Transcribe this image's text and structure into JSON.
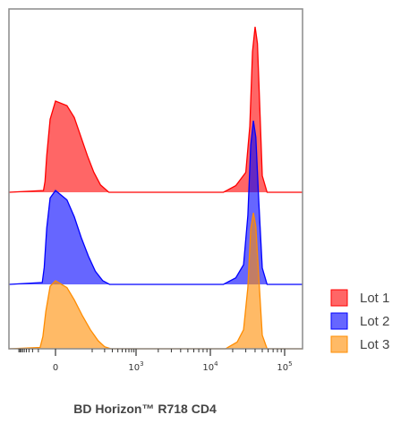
{
  "chart_data": {
    "type": "area",
    "title": "",
    "xlabel": "BD Horizon™ R718 CD4",
    "ylabel": "",
    "x_scale": "biexponential",
    "xlim": [
      -100,
      150000
    ],
    "grid": false,
    "legend_position": "right",
    "x_ticks": [
      {
        "value": 0,
        "base": "0",
        "exp": ""
      },
      {
        "value": 1000,
        "base": "10",
        "exp": "3"
      },
      {
        "value": 10000,
        "base": "10",
        "exp": "4"
      },
      {
        "value": 100000,
        "base": "10",
        "exp": "5"
      }
    ],
    "series": [
      {
        "name": "Lot 1",
        "color": "#ff0000",
        "negative_peak": {
          "x": [
            -50,
            -40,
            -30,
            -15,
            0,
            15,
            30,
            50,
            75,
            110,
            160,
            250
          ],
          "y": [
            0.02,
            0.12,
            0.4,
            0.8,
            1.0,
            0.95,
            0.82,
            0.6,
            0.4,
            0.22,
            0.08,
            0.0
          ]
        },
        "positive_peak": {
          "x": [
            15000,
            22000,
            30000,
            34000,
            37000,
            40000,
            43000,
            46000,
            50000,
            58000
          ],
          "y": [
            0.0,
            0.04,
            0.12,
            0.4,
            0.85,
            1.0,
            0.9,
            0.55,
            0.1,
            0.0
          ]
        }
      },
      {
        "name": "Lot 2",
        "color": "#0000ff",
        "negative_peak": {
          "x": [
            -60,
            -45,
            -30,
            -15,
            0,
            15,
            30,
            50,
            80,
            120,
            180,
            260
          ],
          "y": [
            0.02,
            0.18,
            0.6,
            0.92,
            1.0,
            0.9,
            0.72,
            0.5,
            0.3,
            0.14,
            0.04,
            0.0
          ]
        },
        "positive_peak": {
          "x": [
            15000,
            22000,
            28000,
            32000,
            35000,
            38000,
            41000,
            45000,
            50000,
            58000
          ],
          "y": [
            0.0,
            0.04,
            0.12,
            0.42,
            0.85,
            1.0,
            0.9,
            0.5,
            0.1,
            0.0
          ]
        }
      },
      {
        "name": "Lot 3",
        "color": "#ff8c00",
        "negative_peak": {
          "x": [
            -80,
            -55,
            -35,
            -15,
            0,
            15,
            30,
            55,
            90,
            140,
            200,
            280
          ],
          "y": [
            0.02,
            0.18,
            0.55,
            0.92,
            1.0,
            0.9,
            0.72,
            0.48,
            0.28,
            0.12,
            0.03,
            0.0
          ]
        },
        "positive_peak": {
          "x": [
            16000,
            23000,
            28000,
            32000,
            35000,
            38000,
            41000,
            45000,
            50000,
            58000
          ],
          "y": [
            0.0,
            0.05,
            0.14,
            0.45,
            0.88,
            1.0,
            0.9,
            0.52,
            0.1,
            0.0
          ]
        }
      }
    ]
  }
}
